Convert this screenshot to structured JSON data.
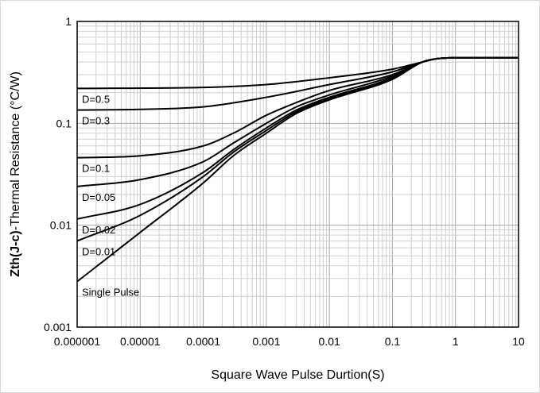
{
  "chart_data": {
    "type": "line",
    "title": "",
    "xlabel": "Square Wave Pulse Durtion(S)",
    "ylabel_bold": "Zth(J-c)",
    "ylabel_rest": "-Thermal  Resistance (°C/W)",
    "x_scale": "log",
    "y_scale": "log",
    "xlim": [
      1e-06,
      10
    ],
    "ylim": [
      0.001,
      1
    ],
    "grid": true,
    "x_ticks": [
      "0.000001",
      "0.00001",
      "0.0001",
      "0.001",
      "0.01",
      "0.1",
      "1",
      "10"
    ],
    "y_ticks": [
      "0.001",
      "0.01",
      "0.1",
      "1"
    ],
    "line_color": "#000000",
    "series": [
      {
        "name": "D=0.5",
        "x": [
          1e-06,
          0.0001,
          0.001,
          0.01,
          0.1,
          0.3,
          0.5,
          1,
          10
        ],
        "y": [
          0.22,
          0.225,
          0.24,
          0.28,
          0.34,
          0.4,
          0.43,
          0.44,
          0.44
        ]
      },
      {
        "name": "D=0.3",
        "x": [
          1e-06,
          1e-05,
          0.0001,
          0.001,
          0.01,
          0.1,
          0.3,
          0.5,
          1,
          10
        ],
        "y": [
          0.135,
          0.137,
          0.145,
          0.18,
          0.24,
          0.32,
          0.4,
          0.43,
          0.44,
          0.44
        ]
      },
      {
        "name": "D=0.1",
        "x": [
          1e-06,
          1e-05,
          0.0001,
          0.0003,
          0.001,
          0.003,
          0.01,
          0.1,
          0.3,
          0.5,
          1,
          10
        ],
        "y": [
          0.046,
          0.048,
          0.06,
          0.08,
          0.12,
          0.16,
          0.21,
          0.3,
          0.4,
          0.43,
          0.44,
          0.44
        ]
      },
      {
        "name": "D=0.05",
        "x": [
          1e-06,
          1e-05,
          0.0001,
          0.0003,
          0.001,
          0.003,
          0.01,
          0.1,
          0.3,
          0.5,
          1,
          10
        ],
        "y": [
          0.024,
          0.028,
          0.042,
          0.064,
          0.1,
          0.145,
          0.19,
          0.29,
          0.4,
          0.43,
          0.44,
          0.44
        ]
      },
      {
        "name": "D=0.02",
        "x": [
          1e-06,
          1e-05,
          0.0001,
          0.0003,
          0.001,
          0.003,
          0.01,
          0.1,
          0.3,
          0.5,
          1,
          10
        ],
        "y": [
          0.0115,
          0.016,
          0.033,
          0.055,
          0.09,
          0.135,
          0.18,
          0.28,
          0.4,
          0.43,
          0.44,
          0.44
        ]
      },
      {
        "name": "D=0.01",
        "x": [
          1e-06,
          1e-05,
          0.0001,
          0.0003,
          0.001,
          0.003,
          0.01,
          0.1,
          0.3,
          0.5,
          1,
          10
        ],
        "y": [
          0.007,
          0.0125,
          0.03,
          0.052,
          0.085,
          0.13,
          0.175,
          0.275,
          0.4,
          0.43,
          0.44,
          0.44
        ]
      },
      {
        "name": "Single Pulse",
        "x": [
          1e-06,
          1e-05,
          0.0001,
          0.0003,
          0.001,
          0.003,
          0.01,
          0.1,
          0.3,
          0.5,
          1,
          10
        ],
        "y": [
          0.0028,
          0.0085,
          0.026,
          0.048,
          0.08,
          0.125,
          0.17,
          0.27,
          0.4,
          0.43,
          0.44,
          0.44
        ]
      }
    ]
  }
}
